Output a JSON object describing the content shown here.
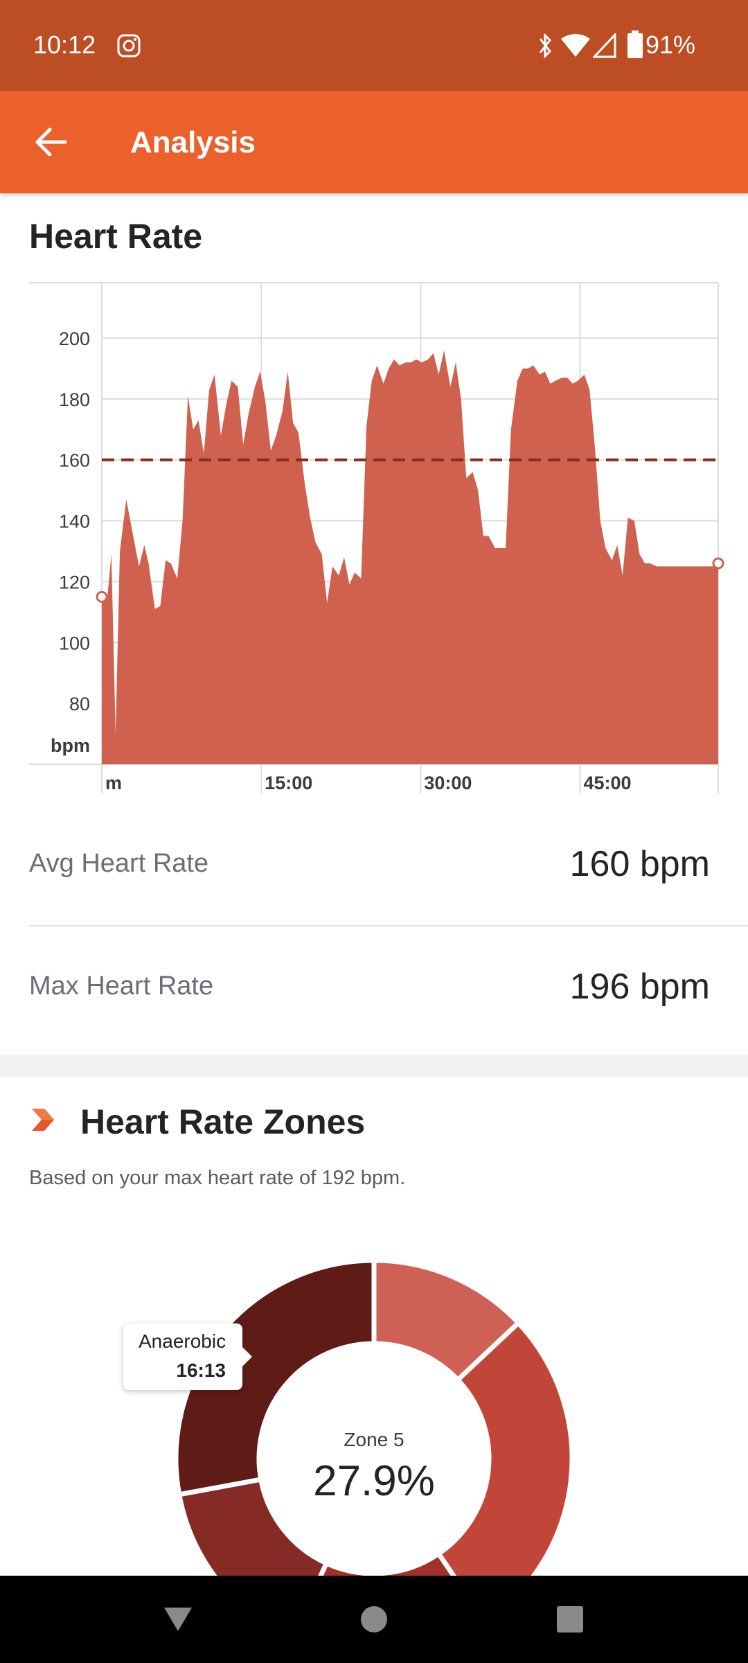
{
  "status_bar": {
    "time": "10:12",
    "battery": "91%",
    "icons": [
      "instagram-icon",
      "bluetooth-icon",
      "wifi-icon",
      "cell-signal-icon",
      "battery-icon"
    ]
  },
  "app_bar": {
    "title": "Analysis",
    "back_icon": "arrow-left-icon"
  },
  "heart_rate": {
    "title": "Heart Rate",
    "stats": [
      {
        "label": "Avg Heart Rate",
        "value": "160 bpm"
      },
      {
        "label": "Max Heart Rate",
        "value": "196 bpm"
      }
    ]
  },
  "chart_data": {
    "type": "area",
    "title": "",
    "xlabel": "m",
    "ylabel": "bpm",
    "y_ticks": [
      80,
      100,
      120,
      140,
      160,
      180,
      200
    ],
    "x_ticks": [
      {
        "value": 15,
        "label": "15:00"
      },
      {
        "value": 30,
        "label": "30:00"
      },
      {
        "value": 45,
        "label": "45:00"
      }
    ],
    "x_origin_label": "m",
    "xlim": [
      0,
      58
    ],
    "ylim": [
      60,
      220
    ],
    "average_line": 160,
    "color": "#d0614f",
    "average_line_color": "#8b2a1d",
    "grid": true,
    "series": [
      {
        "x": [
          0,
          0.5,
          0.9,
          1.3,
          1.7,
          2.3,
          2.9,
          3.5,
          4.0,
          4.4,
          5.0,
          5.5,
          6.0,
          6.5,
          7.1,
          7.6,
          8.1,
          8.6,
          9.1,
          9.6,
          10.1,
          10.6,
          11.2,
          11.7,
          12.2,
          12.8,
          13.3,
          13.8,
          14.4,
          14.9,
          15.4,
          15.9,
          16.4,
          17.0,
          17.5,
          18.0,
          18.5,
          19.1,
          19.6,
          20.1,
          20.7,
          21.2,
          21.7,
          22.3,
          22.8,
          23.3,
          23.8,
          24.4,
          24.9,
          25.4,
          25.9,
          26.5,
          27.0,
          27.5,
          28.0,
          28.6,
          29.1,
          29.6,
          30.1,
          30.7,
          31.2,
          31.7,
          32.2,
          32.8,
          33.3,
          33.8,
          34.3,
          34.9,
          35.4,
          35.9,
          36.4,
          37.0,
          37.5,
          38.0,
          38.5,
          39.1,
          39.6,
          40.1,
          40.6,
          41.2,
          41.7,
          42.2,
          42.7,
          43.3,
          43.8,
          44.3,
          44.8,
          45.4,
          45.9,
          46.4,
          46.9,
          47.4,
          48.0,
          48.5,
          49.0,
          49.5,
          50.1,
          50.6,
          51.1,
          51.6,
          52.2,
          52.7,
          53.2,
          53.7,
          54.3,
          54.8,
          55.3,
          55.8,
          56.4,
          57.0,
          57.5,
          58.0
        ],
        "values": [
          115,
          114,
          129,
          70,
          130,
          147,
          136,
          125,
          132,
          126,
          111,
          112,
          127,
          126,
          121,
          140,
          181,
          170,
          173,
          162,
          183,
          188,
          168,
          178,
          186,
          184,
          165,
          175,
          184,
          189,
          179,
          163,
          168,
          176,
          189,
          172,
          169,
          152,
          141,
          133,
          129,
          113,
          125,
          122,
          128,
          119,
          123,
          121,
          171,
          186,
          191,
          185,
          190,
          193,
          191,
          192,
          192,
          193,
          192,
          193,
          195,
          188,
          196,
          184,
          192,
          180,
          154,
          156,
          150,
          135,
          135,
          131,
          131,
          131,
          170,
          186,
          190,
          190,
          191,
          188,
          189,
          185,
          186,
          187,
          187,
          185,
          186,
          188,
          183,
          164,
          140,
          131,
          127,
          132,
          122,
          141,
          140,
          129,
          126,
          126,
          125,
          125,
          125,
          125,
          125,
          125,
          125,
          125,
          125,
          125,
          125,
          126
        ]
      }
    ]
  },
  "zones": {
    "title": "Heart Rate Zones",
    "subtitle": "Based on your max heart rate of 192 bpm.",
    "tooltip": {
      "name": "Anaerobic",
      "time": "16:13"
    },
    "center": {
      "label": "Zone 5",
      "value": "27.9%"
    },
    "donut": {
      "segments": [
        {
          "percent": 13.0,
          "color": "#cf6056"
        },
        {
          "percent": 27.5,
          "color": "#c2453a"
        },
        {
          "percent": 16.3,
          "color": "#a13229"
        },
        {
          "percent": 15.3,
          "color": "#862a25"
        },
        {
          "percent": 27.9,
          "color": "#5f1b16"
        }
      ]
    }
  }
}
